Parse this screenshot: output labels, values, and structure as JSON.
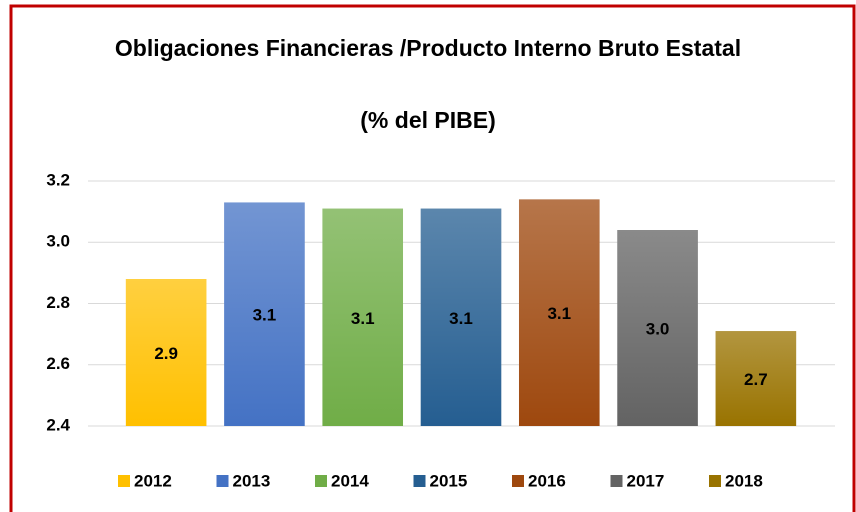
{
  "chart_data": {
    "type": "bar",
    "title": "Obligaciones Financieras /Producto Interno Bruto Estatal",
    "subtitle": "(% del PIBE)",
    "series": [
      {
        "name": "2012",
        "color": "#ffc000",
        "values": [
          2.88
        ],
        "value_labels": [
          "2.9"
        ]
      },
      {
        "name": "2013",
        "color": "#4472c4",
        "values": [
          3.13
        ],
        "value_labels": [
          "3.1"
        ]
      },
      {
        "name": "2014",
        "color": "#70ad47",
        "values": [
          3.11
        ],
        "value_labels": [
          "3.1"
        ]
      },
      {
        "name": "2015",
        "color": "#255e91",
        "values": [
          3.11
        ],
        "value_labels": [
          "3.1"
        ]
      },
      {
        "name": "2016",
        "color": "#9e480e",
        "values": [
          3.14
        ],
        "value_labels": [
          "3.1"
        ]
      },
      {
        "name": "2017",
        "color": "#636363",
        "values": [
          3.04
        ],
        "value_labels": [
          "3.0"
        ]
      },
      {
        "name": "2018",
        "color": "#997300",
        "values": [
          2.71
        ],
        "value_labels": [
          "2.7"
        ]
      }
    ],
    "ylim": [
      2.4,
      3.2
    ],
    "yticks": [
      2.4,
      2.6,
      2.8,
      {
        "value": 3,
        "label": "3.0"
      },
      3.2
    ],
    "grid": true,
    "legend": "bottom"
  }
}
